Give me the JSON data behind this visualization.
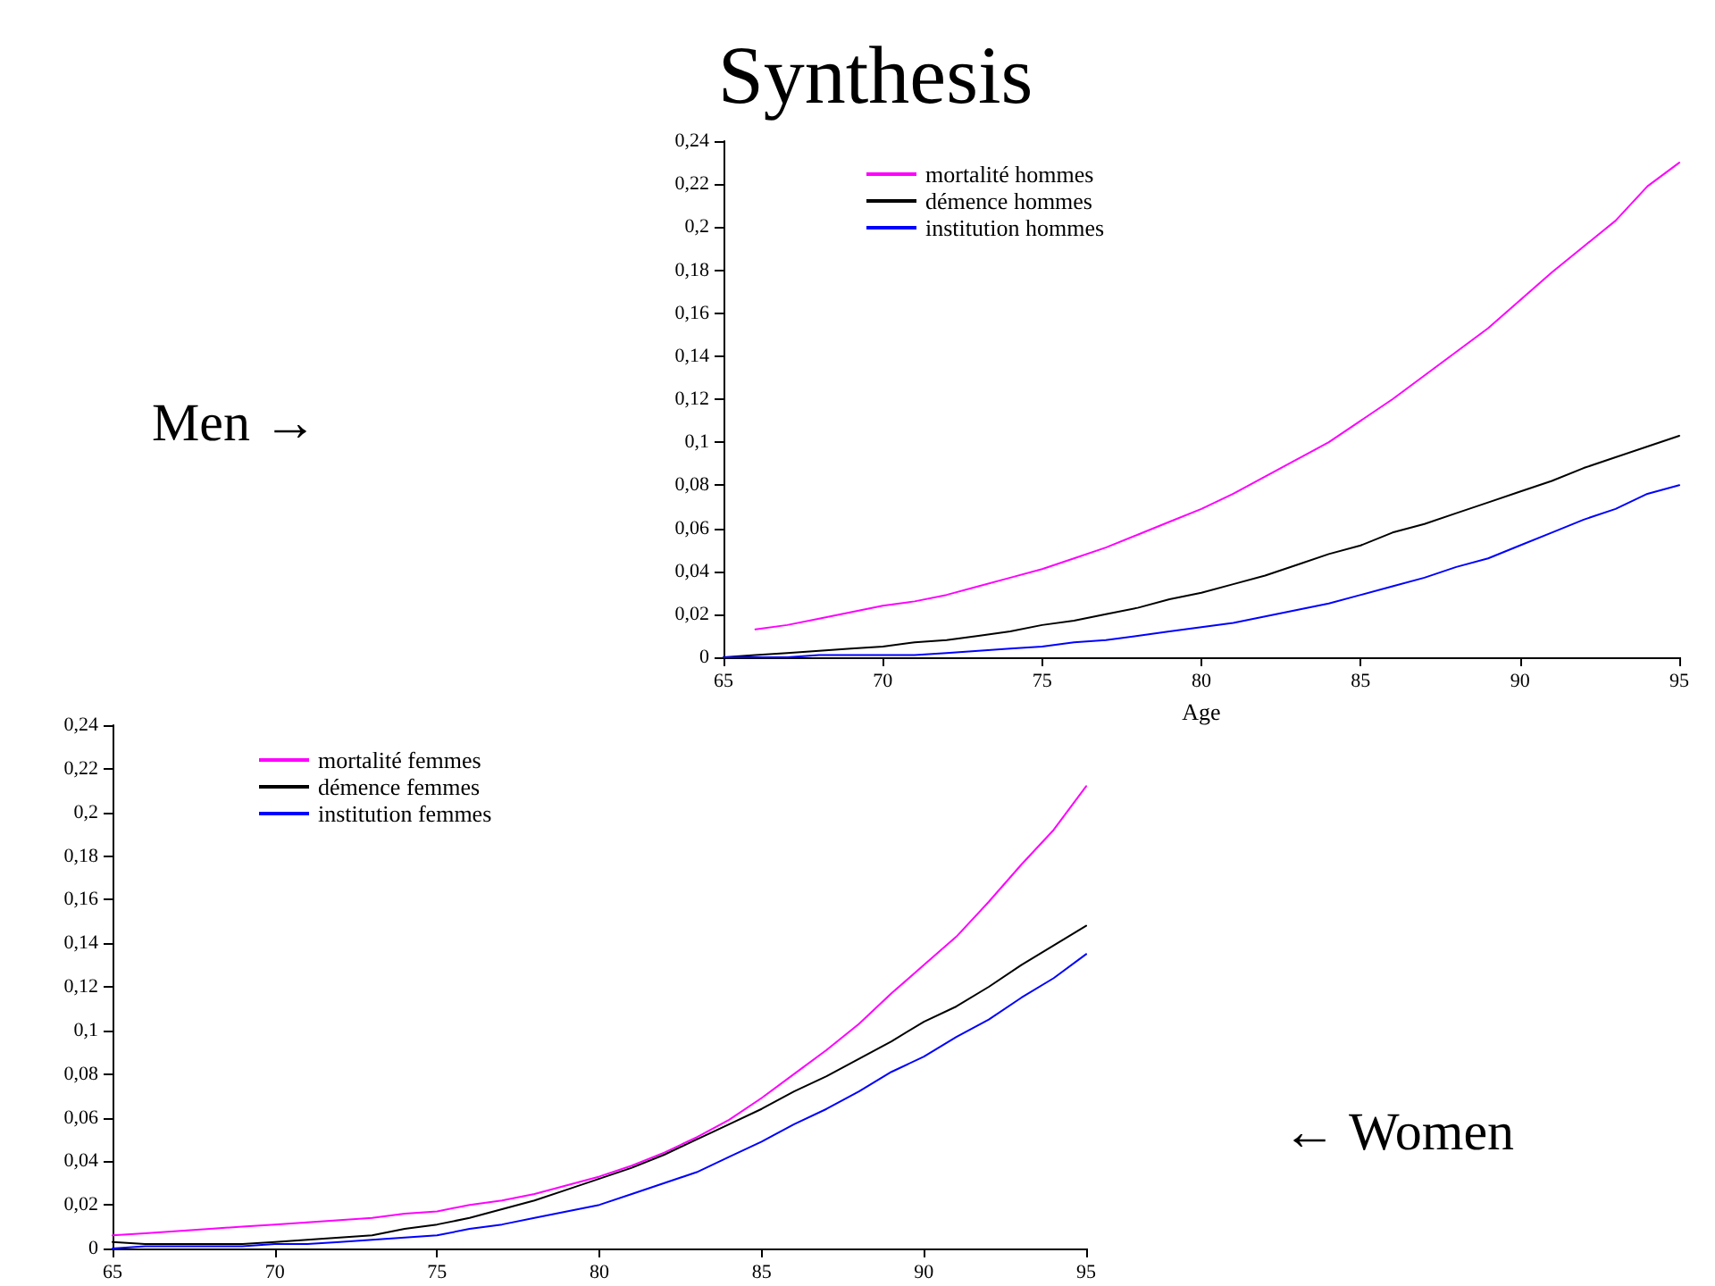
{
  "chart_data": [
    {
      "type": "line",
      "title": "Synthesis",
      "xlabel": "Age",
      "annotations": [
        "Men →"
      ],
      "x": [
        65,
        66,
        67,
        68,
        69,
        70,
        71,
        72,
        73,
        74,
        75,
        76,
        77,
        78,
        79,
        80,
        81,
        82,
        83,
        84,
        85,
        86,
        87,
        88,
        89,
        90,
        91,
        92,
        93,
        94,
        95
      ],
      "series": [
        {
          "name": "mortalité hommes",
          "color": "#ff00ff",
          "values": [
            null,
            0.013,
            0.015,
            0.018,
            0.021,
            0.024,
            0.026,
            0.029,
            0.033,
            0.037,
            0.041,
            0.046,
            0.051,
            0.057,
            0.063,
            0.069,
            0.076,
            0.084,
            0.092,
            0.1,
            0.11,
            0.12,
            0.131,
            0.142,
            0.153,
            0.166,
            0.179,
            0.191,
            0.203,
            0.219,
            0.23
          ]
        },
        {
          "name": "démence hommes",
          "color": "#000000",
          "values": [
            0,
            0.001,
            0.002,
            0.003,
            0.004,
            0.005,
            0.007,
            0.008,
            0.01,
            0.012,
            0.015,
            0.017,
            0.02,
            0.023,
            0.027,
            0.03,
            0.034,
            0.038,
            0.043,
            0.048,
            0.052,
            0.058,
            0.062,
            0.067,
            0.072,
            0.077,
            0.082,
            0.088,
            0.093,
            0.098,
            0.103
          ]
        },
        {
          "name": "institution hommes",
          "color": "#0000ff",
          "values": [
            0,
            0,
            0,
            0.001,
            0.001,
            0.001,
            0.001,
            0.002,
            0.003,
            0.004,
            0.005,
            0.007,
            0.008,
            0.01,
            0.012,
            0.014,
            0.016,
            0.019,
            0.022,
            0.025,
            0.029,
            0.033,
            0.037,
            0.042,
            0.046,
            0.052,
            0.058,
            0.064,
            0.069,
            0.076,
            0.08
          ]
        }
      ],
      "xlim": [
        65,
        95
      ],
      "xticks": [
        65,
        70,
        75,
        80,
        85,
        90,
        95
      ],
      "ylim": [
        0,
        0.24
      ],
      "yticks": [
        {
          "value": 0,
          "label": "0"
        },
        {
          "value": 0.02,
          "label": "0,02"
        },
        {
          "value": 0.04,
          "label": "0,04"
        },
        {
          "value": 0.06,
          "label": "0,06"
        },
        {
          "value": 0.08,
          "label": "0,08"
        },
        {
          "value": 0.1,
          "label": "0,1"
        },
        {
          "value": 0.12,
          "label": "0,12"
        },
        {
          "value": 0.14,
          "label": "0,14"
        },
        {
          "value": 0.16,
          "label": "0,16"
        },
        {
          "value": 0.18,
          "label": "0,18"
        },
        {
          "value": 0.2,
          "label": "0,2"
        },
        {
          "value": 0.22,
          "label": "0,22"
        },
        {
          "value": 0.24,
          "label": "0,24"
        }
      ],
      "grid": false,
      "legend": "top left",
      "marker": "none",
      "line_style": "solid"
    },
    {
      "type": "line",
      "annotations": [
        "← Women"
      ],
      "x": [
        65,
        66,
        67,
        68,
        69,
        70,
        71,
        72,
        73,
        74,
        75,
        76,
        77,
        78,
        79,
        80,
        81,
        82,
        83,
        84,
        85,
        86,
        87,
        88,
        89,
        90,
        91,
        92,
        93,
        94,
        95
      ],
      "series": [
        {
          "name": "mortalité femmes",
          "color": "#ff00ff",
          "values": [
            0.006,
            0.007,
            0.008,
            0.009,
            0.01,
            0.011,
            0.012,
            0.013,
            0.014,
            0.016,
            0.017,
            0.02,
            0.022,
            0.025,
            0.029,
            0.033,
            0.038,
            0.044,
            0.051,
            0.059,
            0.069,
            0.08,
            0.091,
            0.103,
            0.117,
            0.13,
            0.143,
            0.159,
            0.176,
            0.192,
            0.212
          ]
        },
        {
          "name": "démence femmes",
          "color": "#000000",
          "values": [
            0.003,
            0.002,
            0.002,
            0.002,
            0.002,
            0.003,
            0.004,
            0.005,
            0.006,
            0.009,
            0.011,
            0.014,
            0.018,
            0.022,
            0.027,
            0.032,
            0.037,
            0.043,
            0.05,
            0.057,
            0.064,
            0.072,
            0.079,
            0.087,
            0.095,
            0.104,
            0.111,
            0.12,
            0.13,
            0.139,
            0.148
          ]
        },
        {
          "name": "institution femmes",
          "color": "#0000ff",
          "values": [
            0,
            0.001,
            0.001,
            0.001,
            0.001,
            0.002,
            0.002,
            0.003,
            0.004,
            0.005,
            0.006,
            0.009,
            0.011,
            0.014,
            0.017,
            0.02,
            0.025,
            0.03,
            0.035,
            0.042,
            0.049,
            0.057,
            0.064,
            0.072,
            0.081,
            0.088,
            0.097,
            0.105,
            0.115,
            0.124,
            0.135
          ]
        }
      ],
      "xlim": [
        65,
        95
      ],
      "xticks": [
        65,
        70,
        75,
        80,
        85,
        90,
        95
      ],
      "ylim": [
        0,
        0.24
      ],
      "yticks": [
        {
          "value": 0,
          "label": "0"
        },
        {
          "value": 0.02,
          "label": "0,02"
        },
        {
          "value": 0.04,
          "label": "0,04"
        },
        {
          "value": 0.06,
          "label": "0,06"
        },
        {
          "value": 0.08,
          "label": "0,08"
        },
        {
          "value": 0.1,
          "label": "0,1"
        },
        {
          "value": 0.12,
          "label": "0,12"
        },
        {
          "value": 0.14,
          "label": "0,14"
        },
        {
          "value": 0.16,
          "label": "0,16"
        },
        {
          "value": 0.18,
          "label": "0,18"
        },
        {
          "value": 0.2,
          "label": "0,2"
        },
        {
          "value": 0.22,
          "label": "0,22"
        },
        {
          "value": 0.24,
          "label": "0,24"
        }
      ],
      "grid": false,
      "legend": "top left",
      "marker": "none",
      "line_style": "solid"
    }
  ]
}
